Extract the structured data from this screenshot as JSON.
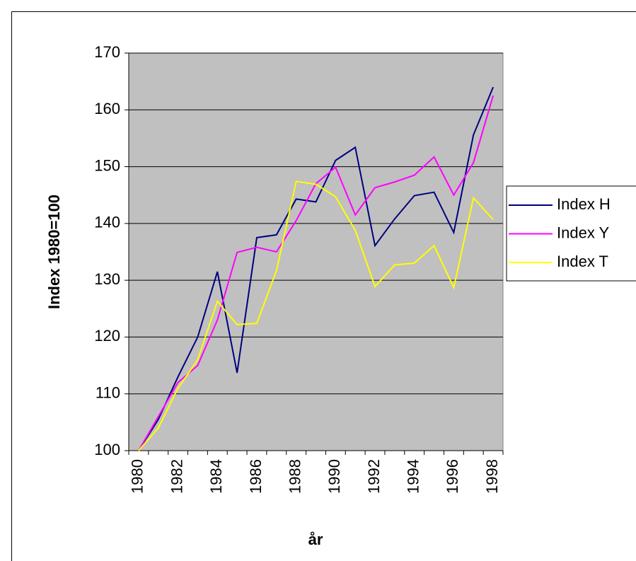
{
  "chart_data": {
    "type": "line",
    "y_label": "Index 1980=100",
    "x_label": "år",
    "categories": [
      "1980",
      null,
      "1982",
      null,
      "1984",
      null,
      "1986",
      null,
      "1988",
      null,
      "1990",
      null,
      "1992",
      null,
      "1994",
      null,
      "1996",
      null,
      "1998"
    ],
    "series": [
      {
        "name": "Index H",
        "color": "#000080",
        "values": [
          100,
          105.5,
          113,
          120,
          131.5,
          113.7,
          137.5,
          138,
          144.3,
          143.8,
          151.1,
          153.4,
          136.1,
          140.8,
          144.9,
          145.5,
          138.4,
          155.6,
          164
        ]
      },
      {
        "name": "Index Y",
        "color": "#ff00ff",
        "values": [
          100,
          106,
          112,
          115,
          123,
          134.9,
          135.8,
          135,
          140.5,
          147,
          149.9,
          141.5,
          146.3,
          147.3,
          148.5,
          151.7,
          145,
          150.7,
          162.5
        ]
      },
      {
        "name": "Index T",
        "color": "#ffff00",
        "values": [
          100,
          104,
          111,
          116,
          126.3,
          122.2,
          122.4,
          131.7,
          147.4,
          146.9,
          144.7,
          138.8,
          128.9,
          132.7,
          133,
          136.1,
          128.7,
          144.5,
          140.7
        ]
      }
    ],
    "ylim": [
      100,
      170
    ],
    "yticks": [
      100,
      110,
      120,
      130,
      140,
      150,
      160,
      170
    ],
    "grid": true,
    "legend": "right",
    "plot_background": "#c0c0c0"
  }
}
